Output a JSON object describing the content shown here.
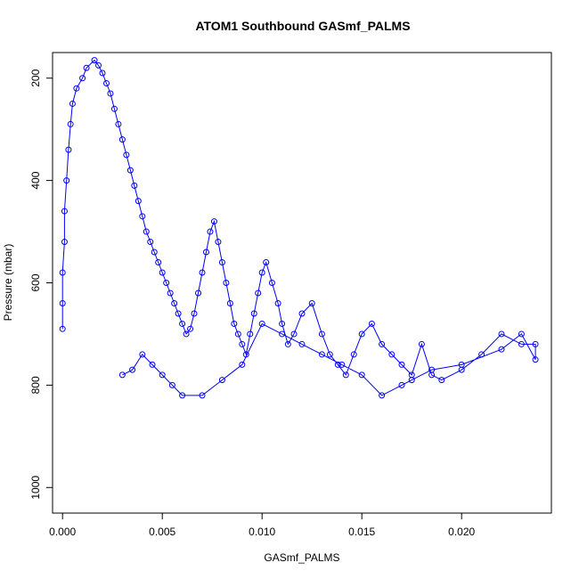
{
  "chart_data": {
    "type": "scatter",
    "title": "ATOM1 Southbound GASmf_PALMS",
    "xlabel": "GASmf_PALMS",
    "ylabel": "Pressure (mbar)",
    "xlim": [
      -0.0005,
      0.0245
    ],
    "ylim": [
      1050,
      150
    ],
    "y_reversed": true,
    "x_ticks": [
      "0.000",
      "0.005",
      "0.010",
      "0.015",
      "0.020"
    ],
    "y_ticks": [
      "200",
      "400",
      "600",
      "800",
      "1000"
    ],
    "grid": false,
    "legend": "none",
    "marker": "open-circle",
    "connected": true,
    "color": "#0000ff",
    "series": [
      {
        "x": [
          0.0,
          0.0,
          0.0,
          0.0001,
          0.0001,
          0.0002,
          0.0003,
          0.0004,
          0.0005,
          0.0007,
          0.001,
          0.0012,
          0.0016,
          0.0018,
          0.002,
          0.0022,
          0.0024,
          0.0026,
          0.0028,
          0.003,
          0.0032,
          0.0034,
          0.0036,
          0.0038,
          0.004,
          0.0042,
          0.0044,
          0.0046,
          0.0048,
          0.005,
          0.0052,
          0.0054,
          0.0056,
          0.0058,
          0.006,
          0.0062,
          0.0064,
          0.0066,
          0.0068,
          0.007,
          0.0072,
          0.0074,
          0.0076,
          0.0078,
          0.008,
          0.0082,
          0.0084,
          0.0086,
          0.0088,
          0.009,
          0.0092,
          0.0094,
          0.0096,
          0.0098,
          0.01,
          0.0102,
          0.0105,
          0.0108,
          0.011,
          0.0113,
          0.0116,
          0.012,
          0.0125,
          0.013,
          0.0134,
          0.0138,
          0.0142,
          0.0146,
          0.015,
          0.0155,
          0.016,
          0.0165,
          0.017,
          0.0175,
          0.018,
          0.0185,
          0.019,
          0.02,
          0.021,
          0.022,
          0.023,
          0.0237,
          0.0237,
          0.023,
          0.022,
          0.02,
          0.0185,
          0.0175,
          0.017,
          0.016,
          0.015,
          0.014,
          0.013,
          0.012,
          0.011,
          0.01,
          0.009,
          0.008,
          0.007,
          0.006,
          0.0055,
          0.005,
          0.0045,
          0.004,
          0.0035,
          0.003
        ],
        "y": [
          690,
          640,
          580,
          520,
          460,
          400,
          340,
          290,
          250,
          220,
          200,
          180,
          165,
          175,
          190,
          210,
          230,
          260,
          290,
          320,
          350,
          380,
          410,
          440,
          470,
          500,
          520,
          540,
          560,
          580,
          600,
          620,
          640,
          660,
          680,
          700,
          690,
          660,
          620,
          580,
          540,
          500,
          480,
          520,
          560,
          600,
          640,
          680,
          700,
          720,
          740,
          700,
          660,
          620,
          580,
          560,
          600,
          640,
          680,
          720,
          700,
          660,
          640,
          700,
          740,
          760,
          780,
          740,
          700,
          680,
          720,
          740,
          760,
          780,
          720,
          780,
          790,
          770,
          740,
          700,
          720,
          720,
          750,
          700,
          730,
          760,
          770,
          790,
          800,
          820,
          780,
          760,
          740,
          720,
          700,
          680,
          760,
          790,
          820,
          820,
          800,
          780,
          760,
          740,
          770,
          780
        ]
      }
    ]
  }
}
